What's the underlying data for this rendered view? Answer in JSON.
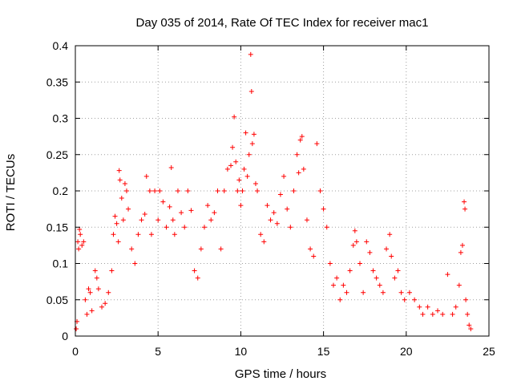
{
  "chart_data": {
    "type": "scatter",
    "title": "Day 035 of 2014, Rate Of TEC Index for receiver mac1",
    "xlabel": "GPS time / hours",
    "ylabel": "ROTI / TECUs",
    "xlim": [
      0,
      25
    ],
    "ylim": [
      0,
      0.4
    ],
    "grid": true,
    "marker": "plus",
    "color": "#ff0000",
    "xticks": [
      {
        "value": 0,
        "label": "0"
      },
      {
        "value": 5,
        "label": "5"
      },
      {
        "value": 10,
        "label": "10"
      },
      {
        "value": 15,
        "label": "15"
      },
      {
        "value": 20,
        "label": "20"
      },
      {
        "value": 25,
        "label": "25"
      }
    ],
    "yticks": [
      {
        "value": 0,
        "label": "0"
      },
      {
        "value": 0.05,
        "label": "0.05"
      },
      {
        "value": 0.1,
        "label": "0.1"
      },
      {
        "value": 0.15,
        "label": "0.15"
      },
      {
        "value": 0.2,
        "label": "0.2"
      },
      {
        "value": 0.25,
        "label": "0.25"
      },
      {
        "value": 0.3,
        "label": "0.3"
      },
      {
        "value": 0.35,
        "label": "0.35"
      },
      {
        "value": 0.4,
        "label": "0.4"
      }
    ],
    "series": [
      {
        "name": "mac1",
        "points": [
          [
            0.05,
            0.01
          ],
          [
            0.1,
            0.02
          ],
          [
            0.15,
            0.13
          ],
          [
            0.2,
            0.12
          ],
          [
            0.25,
            0.147
          ],
          [
            0.3,
            0.14
          ],
          [
            0.4,
            0.125
          ],
          [
            0.5,
            0.13
          ],
          [
            0.6,
            0.05
          ],
          [
            0.7,
            0.03
          ],
          [
            0.8,
            0.065
          ],
          [
            0.9,
            0.06
          ],
          [
            1.0,
            0.035
          ],
          [
            1.2,
            0.09
          ],
          [
            1.3,
            0.08
          ],
          [
            1.4,
            0.065
          ],
          [
            1.6,
            0.04
          ],
          [
            1.8,
            0.045
          ],
          [
            2.0,
            0.06
          ],
          [
            2.2,
            0.09
          ],
          [
            2.3,
            0.14
          ],
          [
            2.4,
            0.165
          ],
          [
            2.5,
            0.155
          ],
          [
            2.6,
            0.13
          ],
          [
            2.65,
            0.228
          ],
          [
            2.7,
            0.215
          ],
          [
            2.8,
            0.19
          ],
          [
            2.9,
            0.16
          ],
          [
            3.0,
            0.21
          ],
          [
            3.1,
            0.2
          ],
          [
            3.2,
            0.175
          ],
          [
            3.4,
            0.12
          ],
          [
            3.6,
            0.1
          ],
          [
            3.8,
            0.14
          ],
          [
            4.0,
            0.16
          ],
          [
            4.2,
            0.168
          ],
          [
            4.3,
            0.22
          ],
          [
            4.5,
            0.2
          ],
          [
            4.6,
            0.14
          ],
          [
            4.8,
            0.2
          ],
          [
            5.0,
            0.16
          ],
          [
            5.1,
            0.2
          ],
          [
            5.3,
            0.185
          ],
          [
            5.5,
            0.15
          ],
          [
            5.7,
            0.178
          ],
          [
            5.8,
            0.232
          ],
          [
            5.9,
            0.16
          ],
          [
            6.0,
            0.14
          ],
          [
            6.2,
            0.2
          ],
          [
            6.4,
            0.17
          ],
          [
            6.6,
            0.15
          ],
          [
            6.8,
            0.2
          ],
          [
            7.0,
            0.173
          ],
          [
            7.2,
            0.09
          ],
          [
            7.4,
            0.08
          ],
          [
            7.6,
            0.12
          ],
          [
            7.8,
            0.15
          ],
          [
            8.0,
            0.18
          ],
          [
            8.2,
            0.16
          ],
          [
            8.4,
            0.17
          ],
          [
            8.6,
            0.2
          ],
          [
            8.8,
            0.12
          ],
          [
            9.0,
            0.2
          ],
          [
            9.2,
            0.23
          ],
          [
            9.4,
            0.235
          ],
          [
            9.5,
            0.26
          ],
          [
            9.6,
            0.302
          ],
          [
            9.7,
            0.24
          ],
          [
            9.8,
            0.2
          ],
          [
            9.9,
            0.215
          ],
          [
            10.0,
            0.18
          ],
          [
            10.1,
            0.2
          ],
          [
            10.2,
            0.23
          ],
          [
            10.3,
            0.28
          ],
          [
            10.4,
            0.22
          ],
          [
            10.5,
            0.25
          ],
          [
            10.6,
            0.388
          ],
          [
            10.65,
            0.337
          ],
          [
            10.7,
            0.265
          ],
          [
            10.8,
            0.278
          ],
          [
            10.9,
            0.21
          ],
          [
            11.0,
            0.2
          ],
          [
            11.2,
            0.14
          ],
          [
            11.4,
            0.13
          ],
          [
            11.6,
            0.18
          ],
          [
            11.8,
            0.16
          ],
          [
            12.0,
            0.17
          ],
          [
            12.2,
            0.155
          ],
          [
            12.4,
            0.195
          ],
          [
            12.6,
            0.22
          ],
          [
            12.8,
            0.175
          ],
          [
            13.0,
            0.15
          ],
          [
            13.2,
            0.2
          ],
          [
            13.4,
            0.25
          ],
          [
            13.5,
            0.225
          ],
          [
            13.6,
            0.27
          ],
          [
            13.7,
            0.275
          ],
          [
            13.8,
            0.23
          ],
          [
            14.0,
            0.16
          ],
          [
            14.2,
            0.12
          ],
          [
            14.4,
            0.11
          ],
          [
            14.6,
            0.265
          ],
          [
            14.8,
            0.2
          ],
          [
            15.0,
            0.175
          ],
          [
            15.2,
            0.15
          ],
          [
            15.4,
            0.1
          ],
          [
            15.6,
            0.07
          ],
          [
            15.8,
            0.08
          ],
          [
            16.0,
            0.05
          ],
          [
            16.2,
            0.07
          ],
          [
            16.4,
            0.06
          ],
          [
            16.6,
            0.09
          ],
          [
            16.8,
            0.125
          ],
          [
            16.9,
            0.145
          ],
          [
            17.0,
            0.13
          ],
          [
            17.2,
            0.1
          ],
          [
            17.4,
            0.06
          ],
          [
            17.6,
            0.13
          ],
          [
            17.8,
            0.115
          ],
          [
            18.0,
            0.09
          ],
          [
            18.2,
            0.08
          ],
          [
            18.4,
            0.07
          ],
          [
            18.6,
            0.06
          ],
          [
            18.8,
            0.12
          ],
          [
            19.0,
            0.14
          ],
          [
            19.1,
            0.11
          ],
          [
            19.3,
            0.08
          ],
          [
            19.5,
            0.09
          ],
          [
            19.7,
            0.06
          ],
          [
            19.9,
            0.05
          ],
          [
            20.2,
            0.06
          ],
          [
            20.5,
            0.05
          ],
          [
            20.8,
            0.04
          ],
          [
            21.0,
            0.03
          ],
          [
            21.3,
            0.04
          ],
          [
            21.6,
            0.03
          ],
          [
            21.9,
            0.035
          ],
          [
            22.2,
            0.03
          ],
          [
            22.5,
            0.085
          ],
          [
            22.8,
            0.03
          ],
          [
            23.0,
            0.04
          ],
          [
            23.2,
            0.07
          ],
          [
            23.3,
            0.115
          ],
          [
            23.4,
            0.125
          ],
          [
            23.5,
            0.185
          ],
          [
            23.55,
            0.175
          ],
          [
            23.6,
            0.05
          ],
          [
            23.7,
            0.03
          ],
          [
            23.8,
            0.015
          ],
          [
            23.9,
            0.01
          ]
        ]
      }
    ]
  }
}
